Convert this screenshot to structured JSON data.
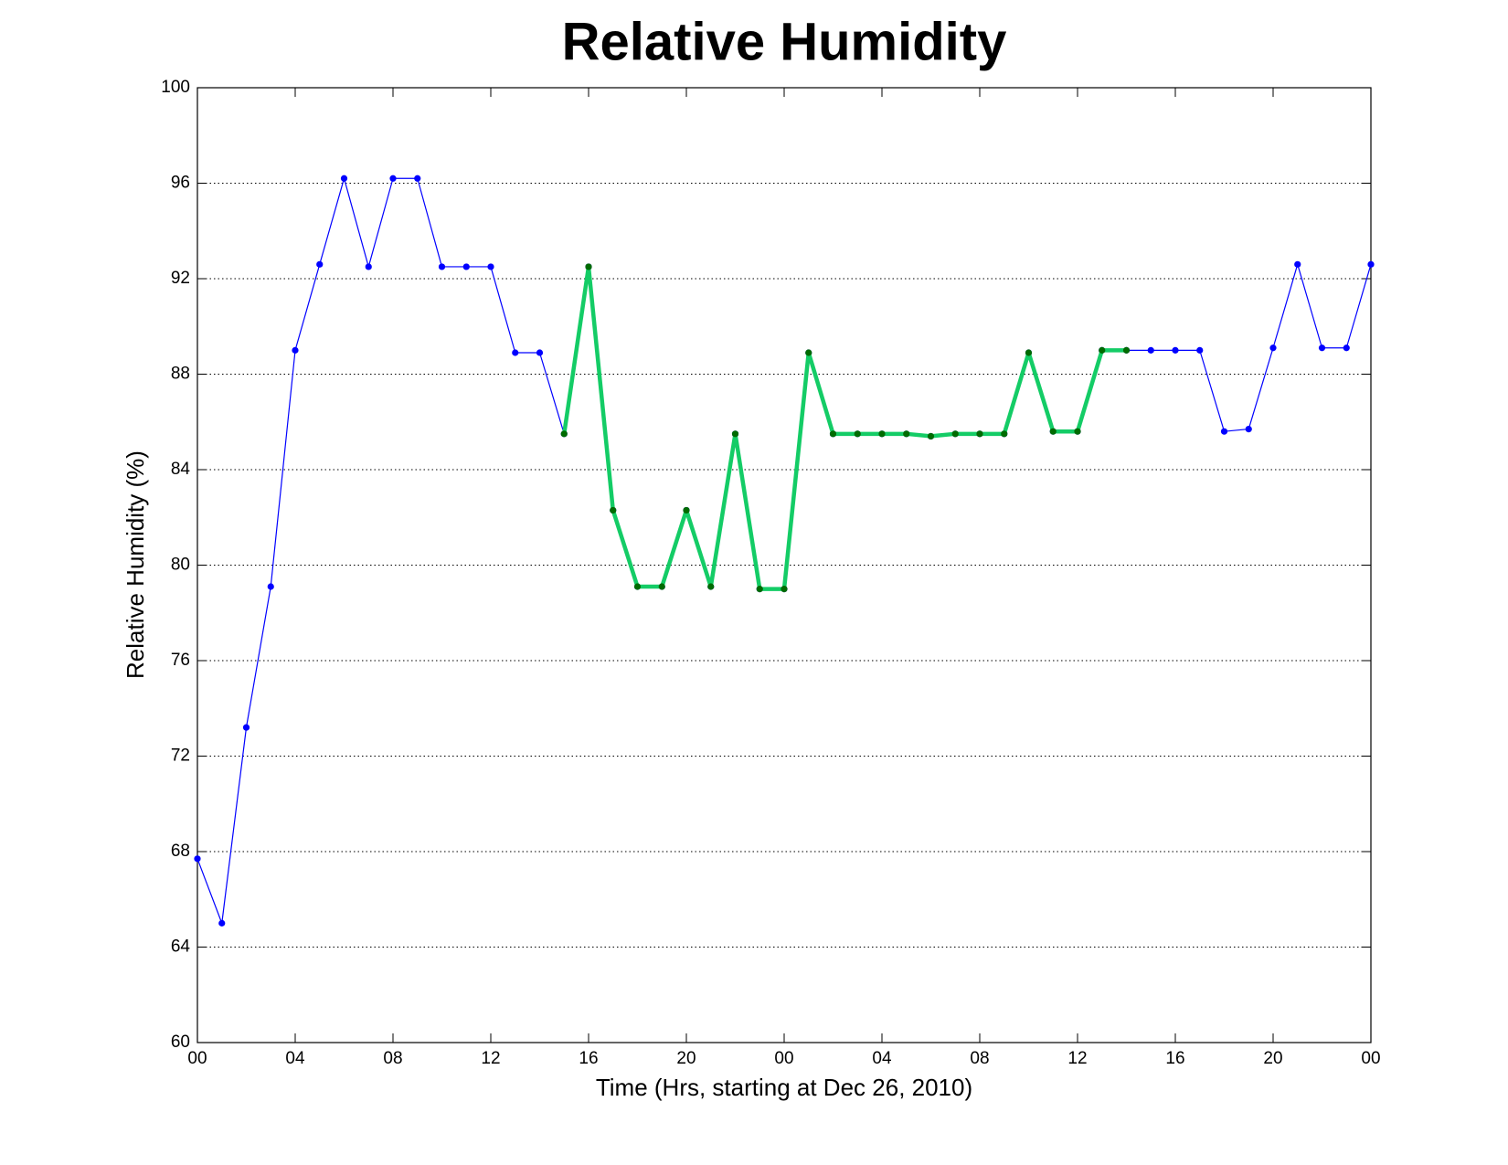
{
  "chart_data": {
    "type": "line",
    "title": "Relative Humidity",
    "x_label": "Time (Hrs, starting at Dec 26, 2010)",
    "y_label": "Relative Humidity (%)",
    "x": [
      0,
      1,
      2,
      3,
      4,
      5,
      6,
      7,
      8,
      9,
      10,
      11,
      12,
      13,
      14,
      15,
      16,
      17,
      18,
      19,
      20,
      21,
      22,
      23,
      24,
      25,
      26,
      27,
      28,
      29,
      30,
      31,
      32,
      33,
      34,
      35,
      36,
      37,
      38,
      39,
      40,
      41,
      42,
      43,
      44,
      45,
      46,
      47,
      48
    ],
    "series": [
      {
        "name": "Relative Humidity",
        "color": "#0000ff",
        "marker_color": "#0000ff",
        "line_width": 1.2,
        "values": [
          67.7,
          65,
          73.2,
          79.1,
          89,
          92.6,
          96.2,
          92.5,
          96.2,
          96.2,
          92.5,
          92.5,
          92.5,
          88.9,
          88.9,
          85.5,
          92.5,
          82.3,
          79.1,
          79.1,
          82.3,
          79.1,
          85.5,
          79.0,
          79.0,
          88.9,
          85.5,
          85.5,
          85.5,
          85.5,
          85.4,
          85.5,
          85.5,
          85.5,
          88.9,
          85.6,
          85.6,
          89.0,
          89.0,
          89.0,
          89.0,
          89.0,
          85.6,
          85.7,
          89.1,
          92.6,
          89.1,
          89.1,
          92.6
        ]
      },
      {
        "color": "#14cc66",
        "marker_color": "#006b00",
        "line_width": 4.5,
        "values": [
          null,
          null,
          null,
          null,
          null,
          null,
          null,
          null,
          null,
          null,
          null,
          null,
          null,
          null,
          null,
          85.5,
          92.5,
          82.3,
          79.1,
          79.1,
          82.3,
          79.1,
          85.5,
          79.0,
          79.0,
          88.9,
          85.5,
          85.5,
          85.5,
          85.5,
          85.4,
          85.5,
          85.5,
          85.5,
          88.9,
          85.6,
          85.6,
          89.0,
          89.0,
          null,
          null,
          null,
          null,
          null,
          null,
          null,
          null,
          null,
          null
        ]
      }
    ],
    "xlim": [
      0,
      48
    ],
    "xticks": [
      {
        "value": 0,
        "label": "00"
      },
      {
        "value": 4,
        "label": "04"
      },
      {
        "value": 8,
        "label": "08"
      },
      12,
      16,
      20,
      {
        "value": 24,
        "label": "00"
      },
      {
        "value": 28,
        "label": "04"
      },
      {
        "value": 32,
        "label": "08"
      },
      {
        "value": 36,
        "label": "12"
      },
      {
        "value": 40,
        "label": "16"
      },
      {
        "value": 44,
        "label": "20"
      },
      {
        "value": 48,
        "label": "00"
      }
    ],
    "ylim": [
      60,
      100
    ],
    "yticks": [
      60,
      64,
      68,
      72,
      76,
      80,
      84,
      88,
      92,
      96,
      100
    ],
    "grid": true
  }
}
